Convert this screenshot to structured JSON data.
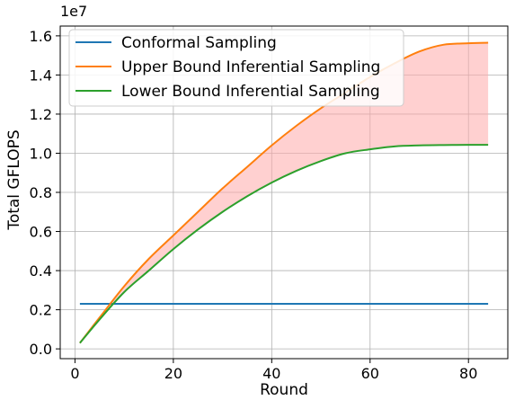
{
  "chart_data": {
    "type": "line",
    "xlabel": "Round",
    "ylabel": "Total GFLOPS",
    "y_offset_label": "1e7",
    "xlim": [
      -3,
      88
    ],
    "ylim": [
      -0.05,
      1.65
    ],
    "xticks": [
      0,
      20,
      40,
      60,
      80
    ],
    "yticks": [
      0.0,
      0.2,
      0.4,
      0.6,
      0.8,
      1.0,
      1.2,
      1.4,
      1.6
    ],
    "y_tick_labels": [
      "0.0",
      "0.2",
      "0.4",
      "0.6",
      "0.8",
      "1.0",
      "1.2",
      "1.4",
      "1.6"
    ],
    "grid": true,
    "legend_position": "top-left",
    "x": [
      1,
      5,
      10,
      15,
      20,
      25,
      30,
      35,
      40,
      45,
      50,
      55,
      60,
      65,
      70,
      75,
      80,
      84
    ],
    "series": [
      {
        "name": "Conformal Sampling",
        "color": "#1f77b4",
        "values": [
          0.23,
          0.23,
          0.23,
          0.23,
          0.23,
          0.23,
          0.23,
          0.23,
          0.23,
          0.23,
          0.23,
          0.23,
          0.23,
          0.23,
          0.23,
          0.23,
          0.23,
          0.23
        ]
      },
      {
        "name": "Upper Bound Inferential Sampling",
        "color": "#ff7f0e",
        "values": [
          0.03,
          0.16,
          0.32,
          0.46,
          0.58,
          0.7,
          0.82,
          0.93,
          1.04,
          1.14,
          1.23,
          1.31,
          1.39,
          1.46,
          1.52,
          1.555,
          1.562,
          1.565
        ]
      },
      {
        "name": "Lower Bound Inferential Sampling",
        "color": "#2ca02c",
        "values": [
          0.03,
          0.15,
          0.29,
          0.4,
          0.51,
          0.61,
          0.7,
          0.78,
          0.85,
          0.91,
          0.96,
          1.0,
          1.02,
          1.035,
          1.04,
          1.042,
          1.043,
          1.043
        ]
      }
    ],
    "fill_between": {
      "upper_series": "Upper Bound Inferential Sampling",
      "lower_series": "Lower Bound Inferential Sampling",
      "color": "#ffaaaa",
      "opacity": 0.55
    }
  }
}
